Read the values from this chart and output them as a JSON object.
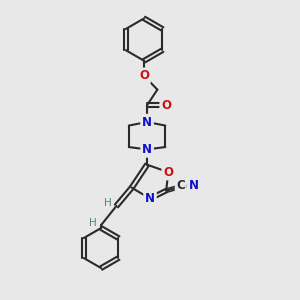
{
  "bg_color": "#e8e8e8",
  "bond_color": "#2a2a2a",
  "bond_width": 1.5,
  "atom_colors": {
    "N": "#1010cc",
    "O": "#cc1010",
    "C": "#2a2a2a",
    "H": "#4a8888"
  },
  "font_size_atom": 8.5,
  "font_size_cn": 8.0
}
